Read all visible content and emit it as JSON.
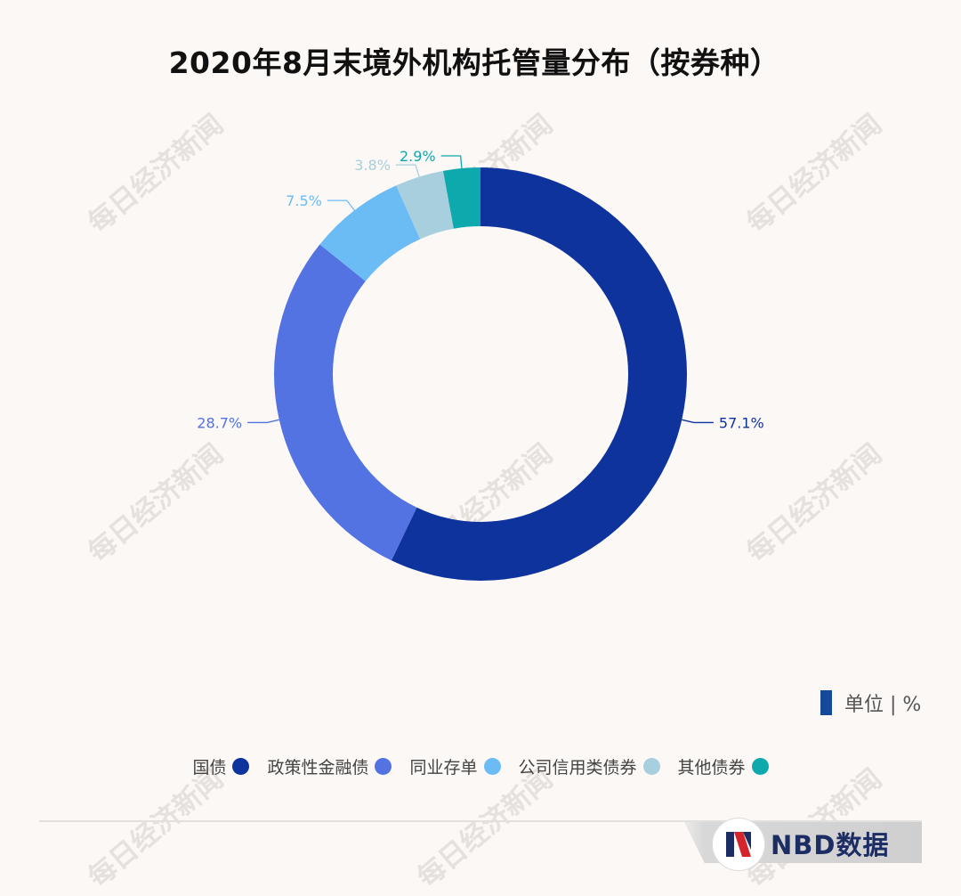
{
  "title": "2020年8月末境外机构托管量分布（按券种）",
  "watermark_text": "每日经济新闻",
  "unit_label": "单位 | %",
  "brand": {
    "name": "NBD数据"
  },
  "colors": {
    "guozhai": "#0e339c",
    "zhengcexing": "#5373e3",
    "tongye": "#6bbcf5",
    "gongsi": "#a7cfdd",
    "qita": "#0ea9ad",
    "unit_bar": "#154a9b"
  },
  "chart_data": {
    "type": "pie",
    "donut": true,
    "title": "2020年8月末境外机构托管量分布（按券种）",
    "unit": "%",
    "legend_position": "bottom",
    "slices": [
      {
        "name": "国债",
        "value": 57.1,
        "label": "57.1%",
        "color": "#0e339c"
      },
      {
        "name": "政策性金融债",
        "value": 28.7,
        "label": "28.7%",
        "color": "#5373e3"
      },
      {
        "name": "同业存单",
        "value": 7.5,
        "label": "7.5%",
        "color": "#6bbcf5"
      },
      {
        "name": "公司信用类债券",
        "value": 3.8,
        "label": "3.8%",
        "color": "#a7cfdd"
      },
      {
        "name": "其他债券",
        "value": 2.9,
        "label": "2.9%",
        "color": "#0ea9ad"
      }
    ]
  }
}
